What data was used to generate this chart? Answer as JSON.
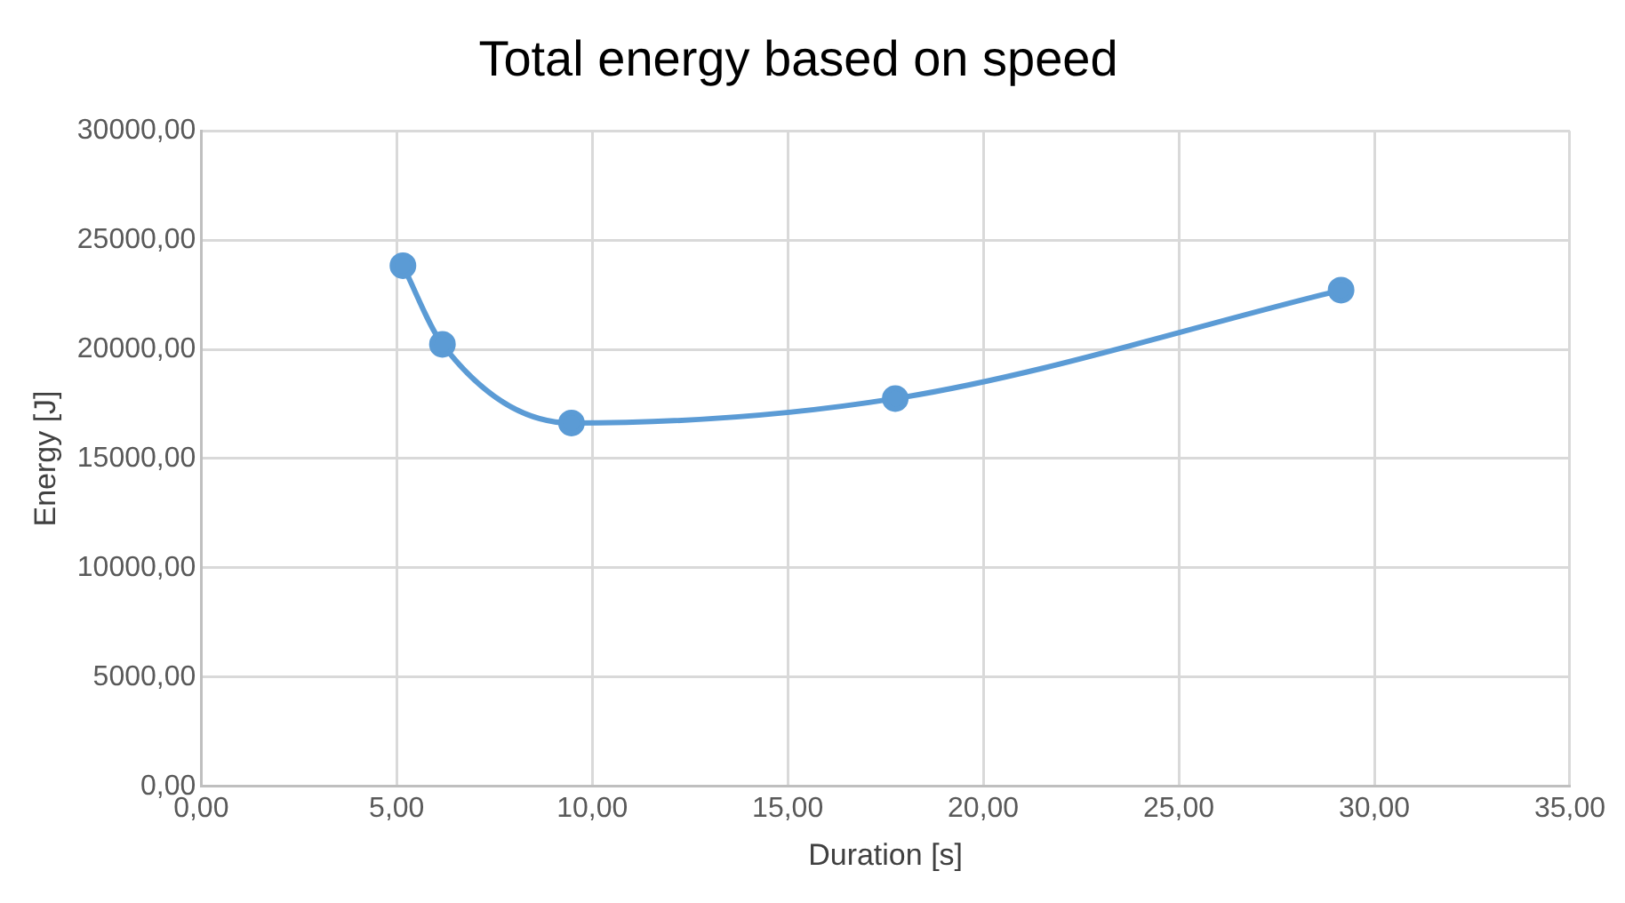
{
  "chart_data": {
    "type": "line",
    "title": "Total energy based on speed",
    "xlabel": "Duration [s]",
    "ylabel": "Energy [J]",
    "series": [
      {
        "color": "#5b9bd5",
        "x": [
          5.16,
          6.17,
          9.47,
          17.75,
          29.15
        ],
        "values": [
          23830,
          20230,
          16630,
          17750,
          22710
        ]
      }
    ],
    "xlim": [
      0,
      35
    ],
    "ylim": [
      0,
      30000
    ],
    "xticks": [
      {
        "value": 0,
        "label": "0,00"
      },
      {
        "value": 5,
        "label": "5,00"
      },
      {
        "value": 10,
        "label": "10,00"
      },
      {
        "value": 15,
        "label": "15,00"
      },
      {
        "value": 20,
        "label": "20,00"
      },
      {
        "value": 25,
        "label": "25,00"
      },
      {
        "value": 30,
        "label": "30,00"
      },
      {
        "value": 35,
        "label": "35,00"
      }
    ],
    "yticks": [
      {
        "value": 0,
        "label": "0,00"
      },
      {
        "value": 5000,
        "label": "5000,00"
      },
      {
        "value": 10000,
        "label": "10000,00"
      },
      {
        "value": 15000,
        "label": "15000,00"
      },
      {
        "value": 20000,
        "label": "20000,00"
      },
      {
        "value": 25000,
        "label": "25000,00"
      },
      {
        "value": 30000,
        "label": "30000,00"
      }
    ],
    "grid": true,
    "legend": false,
    "marker": "circle",
    "line_style": "solid"
  }
}
